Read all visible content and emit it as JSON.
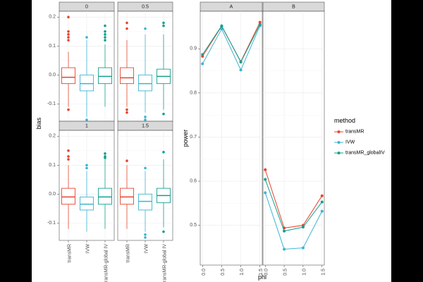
{
  "colors": {
    "transMR": "#E6452F",
    "IVW": "#3CB4D2",
    "transMR_global": "#13A08E",
    "strip": "#D9D9D9",
    "grid": "#EBEBEB"
  },
  "chart_data": [
    {
      "type": "boxplot",
      "facet_type": "wrap",
      "ylabel": "bias",
      "ylim": [
        -0.16,
        0.22
      ],
      "yticks": [
        -0.1,
        0.0,
        0.1,
        0.2
      ],
      "ytick_labels": [
        "-0.1",
        "0.0",
        "0.1",
        "0.2"
      ],
      "categories": [
        "transMR",
        "IVW",
        "transMR-global IV"
      ],
      "panels": [
        {
          "label": "0",
          "boxes": [
            {
              "category": "transMR",
              "q1": -0.03,
              "median": -0.008,
              "q3": 0.025,
              "whisker_low": -0.11,
              "whisker_high": 0.08,
              "outliers": [
                0.2,
                0.15,
                0.14,
                0.13,
                0.12,
                -0.12
              ]
            },
            {
              "category": "IVW",
              "q1": -0.055,
              "median": -0.03,
              "q3": 0.0,
              "whisker_low": -0.145,
              "whisker_high": 0.12,
              "outliers": [
                0.13,
                -0.155
              ]
            },
            {
              "category": "transMR-global IV",
              "q1": -0.03,
              "median": -0.005,
              "q3": 0.025,
              "whisker_low": -0.11,
              "whisker_high": 0.105,
              "outliers": [
                0.17,
                0.15,
                0.14,
                0.13,
                0.12
              ]
            }
          ]
        },
        {
          "label": "0.5",
          "boxes": [
            {
              "category": "transMR",
              "q1": -0.03,
              "median": -0.01,
              "q3": 0.025,
              "whisker_low": -0.11,
              "whisker_high": 0.12,
              "outliers": [
                0.18,
                0.16,
                -0.12,
                -0.13
              ]
            },
            {
              "category": "IVW",
              "q1": -0.055,
              "median": -0.03,
              "q3": 0.0,
              "whisker_low": -0.13,
              "whisker_high": 0.14,
              "outliers": [
                0.16,
                -0.145,
                -0.155
              ]
            },
            {
              "category": "transMR-global IV",
              "q1": -0.03,
              "median": -0.005,
              "q3": 0.02,
              "whisker_low": -0.12,
              "whisker_high": 0.14,
              "outliers": [
                0.18,
                0.17,
                -0.135
              ]
            }
          ]
        },
        {
          "label": "1",
          "boxes": [
            {
              "category": "transMR",
              "q1": -0.035,
              "median": -0.01,
              "q3": 0.02,
              "whisker_low": -0.12,
              "whisker_high": 0.1,
              "outliers": [
                0.15,
                0.13,
                0.12
              ]
            },
            {
              "category": "IVW",
              "q1": -0.055,
              "median": -0.035,
              "q3": -0.01,
              "whisker_low": -0.13,
              "whisker_high": 0.08,
              "outliers": [
                0.1,
                0.09
              ]
            },
            {
              "category": "transMR-global IV",
              "q1": -0.035,
              "median": -0.01,
              "q3": 0.02,
              "whisker_low": -0.12,
              "whisker_high": 0.12,
              "outliers": [
                0.14,
                0.13,
                0.125
              ]
            }
          ]
        },
        {
          "label": "1.5",
          "boxes": [
            {
              "category": "transMR",
              "q1": -0.035,
              "median": -0.01,
              "q3": 0.02,
              "whisker_low": -0.12,
              "whisker_high": 0.1,
              "outliers": [
                0.115
              ]
            },
            {
              "category": "IVW",
              "q1": -0.055,
              "median": -0.025,
              "q3": 0.0,
              "whisker_low": -0.13,
              "whisker_high": 0.08,
              "outliers": [
                0.09,
                -0.14,
                -0.15
              ]
            },
            {
              "category": "transMR-global IV",
              "q1": -0.03,
              "median": -0.005,
              "q3": 0.02,
              "whisker_low": -0.115,
              "whisker_high": 0.12,
              "outliers": [
                0.145,
                -0.13
              ]
            }
          ]
        }
      ]
    },
    {
      "type": "line",
      "xlabel": "phi",
      "ylabel": "power",
      "x": [
        0,
        0.5,
        1,
        1.5
      ],
      "xtick_labels": [
        "0.0",
        "0.5",
        "1.0",
        "1.5"
      ],
      "ylim": [
        0.41,
        0.985
      ],
      "yticks": [
        0.5,
        0.6,
        0.7,
        0.8,
        0.9
      ],
      "ytick_labels": [
        "0.5",
        "0.6",
        "0.7",
        "0.8",
        "0.9"
      ],
      "legend_title": "method",
      "legend_position": "right",
      "panels": [
        {
          "label": "A",
          "series": [
            {
              "name": "transMR",
              "values": [
                0.883,
                0.951,
                0.871,
                0.96
              ]
            },
            {
              "name": "IVW",
              "values": [
                0.866,
                0.945,
                0.852,
                0.952
              ]
            },
            {
              "name": "transMR_globalIV",
              "values": [
                0.887,
                0.952,
                0.87,
                0.955
              ]
            }
          ]
        },
        {
          "label": "B",
          "series": [
            {
              "name": "transMR",
              "values": [
                0.626,
                0.494,
                0.5,
                0.567
              ]
            },
            {
              "name": "IVW",
              "values": [
                0.574,
                0.446,
                0.449,
                0.532
              ]
            },
            {
              "name": "transMR_globalIV",
              "values": [
                0.604,
                0.487,
                0.496,
                0.553
              ]
            }
          ]
        }
      ]
    }
  ]
}
